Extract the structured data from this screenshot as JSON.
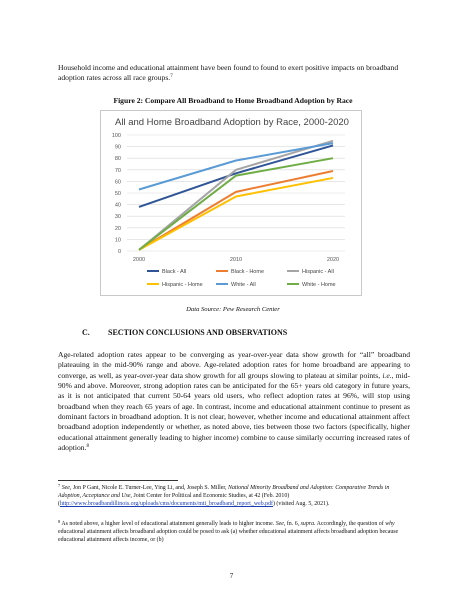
{
  "intro": {
    "text": "Household income and educational attainment have been found to found to exert positive impacts on broadband adoption rates across all race groups.",
    "footnote_ref": "7"
  },
  "figure": {
    "caption": "Figure 2: Compare All Broadband to Home Broadband Adoption by Race",
    "source": "Data Source: Pew Research Center"
  },
  "chart_data": {
    "type": "line",
    "title": "All and Home Broadband Adoption by Race, 2000-2020",
    "x": [
      "2000",
      "2010",
      "2020"
    ],
    "ylim": [
      0,
      100
    ],
    "yticks": [
      0,
      10,
      20,
      30,
      40,
      50,
      60,
      70,
      80,
      90,
      100
    ],
    "xlabel": "",
    "ylabel": "",
    "grid": true,
    "legend_position": "bottom",
    "series": [
      {
        "name": "Black - All",
        "values": [
          38,
          67,
          91
        ],
        "color": "#2f5597"
      },
      {
        "name": "Black - Home",
        "values": [
          1,
          51,
          69
        ],
        "color": "#ed7d31"
      },
      {
        "name": "Hispanic - All",
        "values": [
          1,
          70,
          95
        ],
        "color": "#a5a5a5"
      },
      {
        "name": "Hispanic - Home",
        "values": [
          1,
          47,
          63
        ],
        "color": "#ffc000"
      },
      {
        "name": "White - All",
        "values": [
          53,
          78,
          93
        ],
        "color": "#5b9bd5"
      },
      {
        "name": "White - Home",
        "values": [
          1,
          65,
          80
        ],
        "color": "#70ad47"
      }
    ]
  },
  "section": {
    "letter": "C.",
    "title": "SECTION CONCLUSIONS AND OBSERVATIONS"
  },
  "body": {
    "p1": "Age-related adoption rates appear to be converging as year-over-year data show growth for “all” broadband plateauing in the mid-90% range and above. Age-related adoption rates for home broadband are appearing to converge, as well, as year-over-year data show growth for all groups slowing to plateau at similar points,",
    "ie": "i.e.,",
    "p2": "mid-90% and above. Moreover, strong adoption rates can be anticipated for the 65+ years old category in future years, as it is not anticipated that current 50-64 years old users, who reflect adoption rates at 96%, will stop using broadband when they reach 65 years of age. In contrast, income and educational attainment continue to present as dominant factors in broadband adoption. It is not clear, however, whether income and educational attainment affect broadband adoption independently or whether, as noted above, ties between those two factors (specifically, higher educational attainment generally leading to higher income) combine to cause similarly occurring increased rates of adoption.",
    "footnote_ref": "8"
  },
  "footnotes": {
    "fn7": {
      "num": "7",
      "see": "See,",
      "authors": "Jon P Gant, Nicole E. Turner-Lee, Ying Li, and, Joseph S. Miller,",
      "title": "National Minority Broadband and Adoption: Comparative Trends in Adoption, Acceptance and Use,",
      "publisher": "Joint Center for Political and Economic Studies, at 42 (Feb. 2010) (",
      "url": "http://www.broadbandillinois.org/uploads/cms/documents/mti_broadband_report_web.pdf",
      "visited": ") (visited Aug. 5, 2021)."
    },
    "fn8": {
      "num": "8",
      "text1": "As noted above, a higher level of educational attainment generally leads to higher income.",
      "see": "See,",
      "fn_ref": "fn. 6,",
      "supra": "supra.",
      "text2": "Accordingly, the question of",
      "why": "why",
      "text3": "educational attainment affects broadband adoption could be posed to ask (a) whether educational attainment affects broadband adoption because educational attainment affects income, or (b)"
    }
  },
  "page_number": "7"
}
